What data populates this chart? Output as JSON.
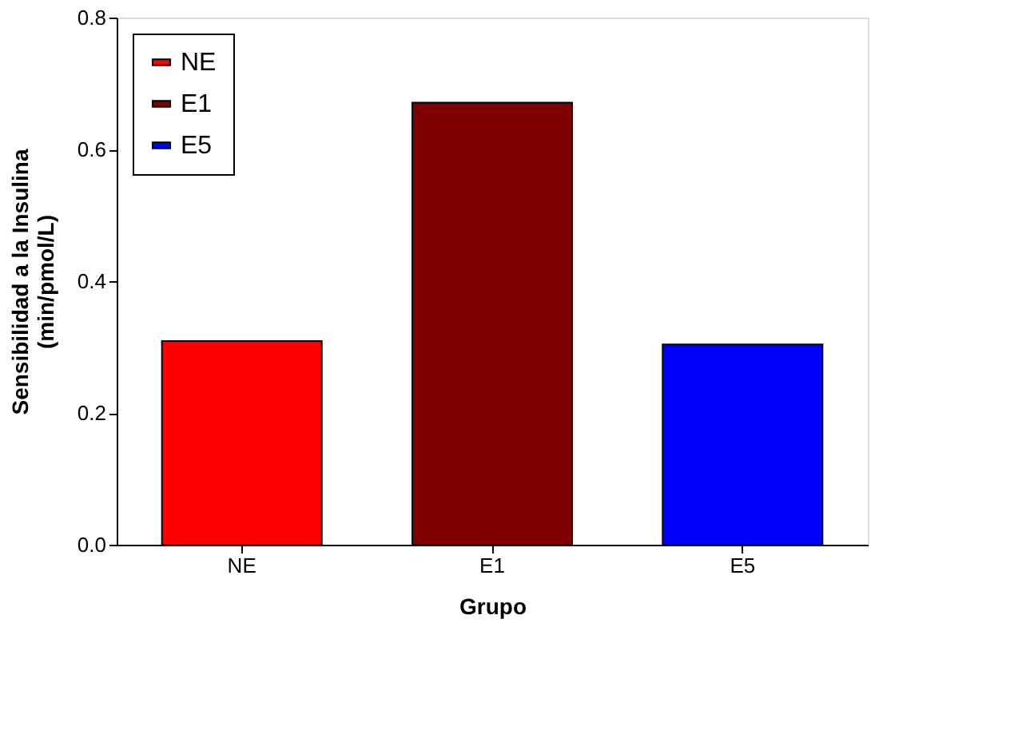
{
  "chart_data": {
    "type": "bar",
    "xlabel": "Grupo",
    "ylabel": "Sensibilidad a la Insulina\n(min/pmol/L)",
    "categories": [
      "NE",
      "E1",
      "E5"
    ],
    "series": [
      {
        "name": "NE",
        "color": "#ff0000",
        "values": [
          0.309,
          null,
          null
        ]
      },
      {
        "name": "E1",
        "color": "#7f0000",
        "values": [
          null,
          0.671,
          null
        ]
      },
      {
        "name": "E5",
        "color": "#0000ff",
        "values": [
          null,
          null,
          0.304
        ]
      }
    ],
    "ylim": [
      0,
      0.8
    ],
    "yticks": [
      {
        "value": 0,
        "label": "0.0"
      },
      0.2,
      0.4,
      0.6,
      0.8
    ],
    "grid": false,
    "legend": "top left"
  }
}
